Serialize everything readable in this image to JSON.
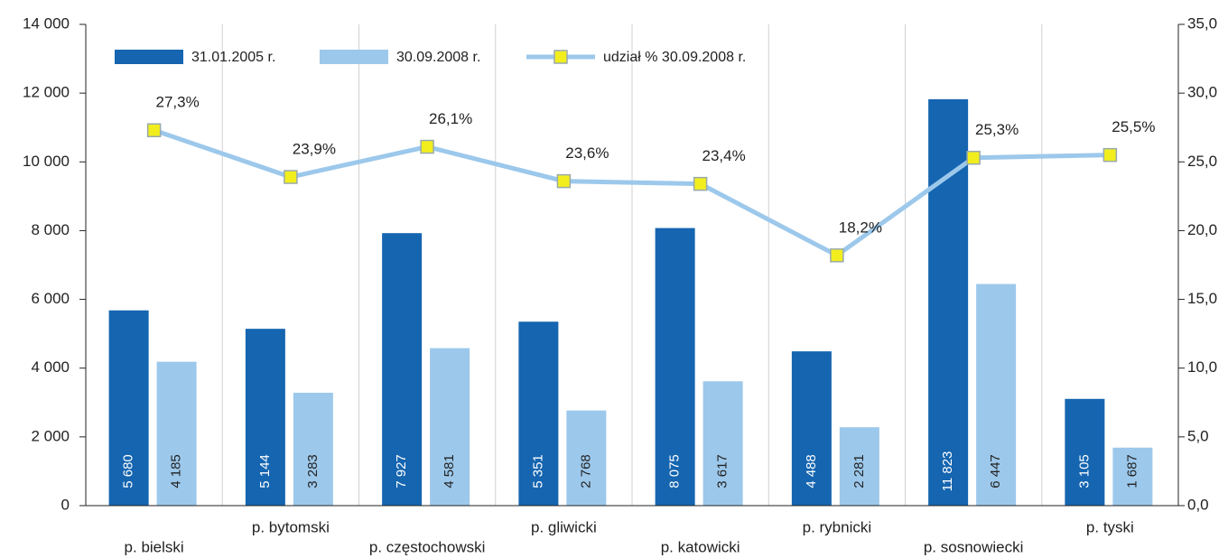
{
  "chart_data": {
    "type": "bar-line",
    "categories": [
      "p. bielski",
      "p. bytomski",
      "p. częstochowski",
      "p. gliwicki",
      "p. katowicki",
      "p. rybnicki",
      "p. sosnowiecki",
      "p. tyski"
    ],
    "series": [
      {
        "name": "31.01.2005 r.",
        "type": "bar",
        "color": "#1565b0",
        "values": [
          5680,
          5144,
          7927,
          5351,
          8075,
          4488,
          11823,
          3105
        ],
        "value_labels": [
          "5 680",
          "5 144",
          "7 927",
          "5 351",
          "8 075",
          "4 488",
          "11 823",
          "3 105"
        ]
      },
      {
        "name": "30.09.2008 r.",
        "type": "bar",
        "color": "#9cc8eb",
        "values": [
          4185,
          3283,
          4581,
          2768,
          3617,
          2281,
          6447,
          1687
        ],
        "value_labels": [
          "4 185",
          "3 283",
          "4 581",
          "2 768",
          "3 617",
          "2 281",
          "6 447",
          "1 687"
        ]
      },
      {
        "name": "udział % 30.09.2008 r.",
        "type": "line",
        "axis": "y2",
        "color": "#9cc8eb",
        "marker_color": "#f2ee1e",
        "values": [
          27.3,
          23.9,
          26.1,
          23.6,
          23.4,
          18.2,
          25.3,
          25.5
        ],
        "value_labels": [
          "27,3%",
          "23,9%",
          "26,1%",
          "23,6%",
          "23,4%",
          "18,2%",
          "25,3%",
          "25,5%"
        ]
      }
    ],
    "ylim": [
      0,
      14000
    ],
    "yticks": [
      0,
      {
        "value": 2000,
        "label": "2 000"
      },
      {
        "value": 4000,
        "label": "4 000"
      },
      {
        "value": 6000,
        "label": "6 000"
      },
      {
        "value": 8000,
        "label": "8 000"
      },
      {
        "value": 10000,
        "label": "10 000"
      },
      {
        "value": 12000,
        "label": "12 000"
      },
      {
        "value": 14000,
        "label": "14 000"
      }
    ],
    "y2lim": [
      0,
      35
    ],
    "y2ticks": [
      {
        "value": 0,
        "label": "0,0"
      },
      {
        "value": 5,
        "label": "5,0"
      },
      {
        "value": 10,
        "label": "10,0"
      },
      {
        "value": 15,
        "label": "15,0"
      },
      {
        "value": 20,
        "label": "20,0"
      },
      {
        "value": 25,
        "label": "25,0"
      },
      {
        "value": 30,
        "label": "30,0"
      },
      {
        "value": 35,
        "label": "35,0"
      }
    ],
    "legend": "top-left"
  }
}
